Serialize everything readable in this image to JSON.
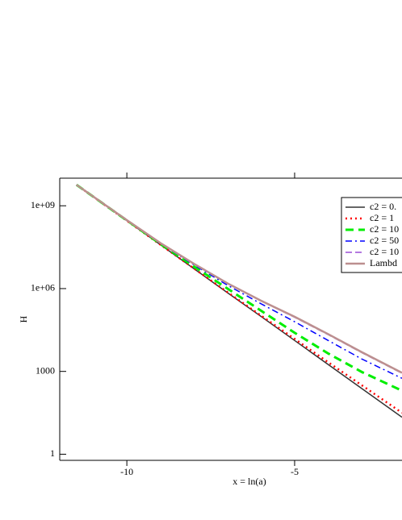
{
  "chart_data": {
    "type": "line",
    "log_y": true,
    "x_label": "x = ln(a)",
    "y_label": "H",
    "x": [
      -11.5,
      -10,
      -9,
      -8,
      -7,
      -6,
      -5,
      -4,
      -3,
      -1.8
    ],
    "series": [
      {
        "name": "c2 = 0.",
        "color": "#333333",
        "dash": "solid",
        "values": [
          5750000000,
          288000000,
          38900000,
          5250000,
          708000,
          97700,
          13200,
          1780,
          240,
          21.9
        ]
      },
      {
        "name": "c2 = 1",
        "color": "#ff0000",
        "dash": "dotted",
        "values": [
          5750000000,
          288000000,
          38900000,
          5370000,
          741000,
          105000,
          15100,
          2140,
          316,
          31.6
        ]
      },
      {
        "name": "c2 = 10",
        "color": "#00ee00",
        "dash": "dashed",
        "values": [
          5750000000,
          295000000,
          41700000,
          6310000,
          1000000,
          158000,
          25100,
          4470,
          955,
          200
        ]
      },
      {
        "name": "c2 = 50",
        "color": "#0000ff",
        "dash": "dashdot",
        "values": [
          5750000000,
          295000000,
          43700000,
          7240000,
          1320000,
          282000,
          63100,
          13200,
          2820,
          562
        ]
      },
      {
        "name": "c2 = 10",
        "color": "#9a4dd6",
        "dash": "longdash",
        "values": [
          5750000000,
          302000000,
          44700000,
          7940000,
          1510000,
          355000,
          91200,
          21400,
          4790,
          851
        ]
      },
      {
        "name": "Lambd",
        "color": "#bc8f8f",
        "dash": "solid",
        "values": [
          5750000000,
          302000000,
          44700000,
          7940000,
          1550000,
          363000,
          95500,
          22400,
          5010,
          891
        ]
      }
    ],
    "xlim": [
      -12,
      -1.8
    ],
    "xticks": [
      -10,
      -5
    ],
    "ylim": [
      0.6,
      10000000000
    ],
    "yticks": [
      1,
      1000,
      {
        "value": 1000000,
        "label": "1e+06"
      },
      {
        "value": 1000000000,
        "label": "1e+09"
      }
    ],
    "legend": "top-right"
  }
}
